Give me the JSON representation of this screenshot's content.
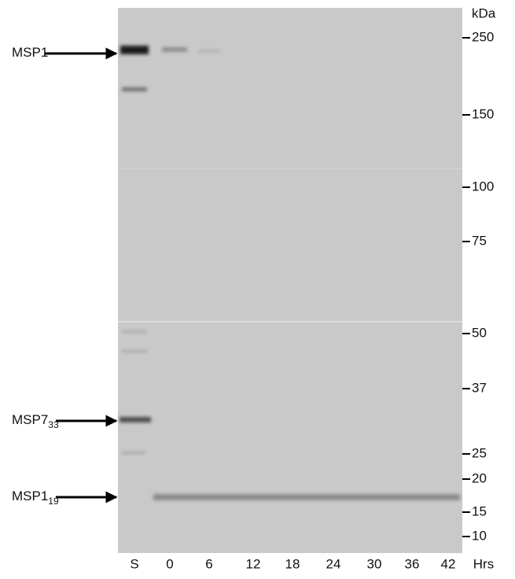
{
  "protein_labels": [
    {
      "text": "MSP1"
    },
    {
      "text": "MSP7",
      "subscript": "33"
    },
    {
      "text": "MSP1",
      "subscript": "19"
    }
  ],
  "marker_unit": "kDa",
  "markers": [
    "250",
    "150",
    "100",
    "75",
    "50",
    "37",
    "25",
    "20",
    "15",
    "10"
  ],
  "lanes": [
    "S",
    "0",
    "6",
    "12",
    "18",
    "24",
    "30",
    "36",
    "42"
  ],
  "lane_axis_label": "Hrs"
}
